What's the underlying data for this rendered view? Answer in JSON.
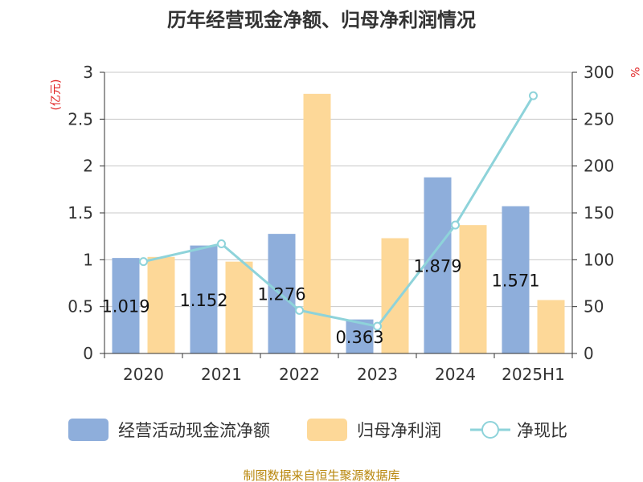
{
  "chart_data": {
    "type": "bar",
    "title": "历年经营现金净额、归母净利润情况",
    "categories": [
      "2020",
      "2021",
      "2022",
      "2023",
      "2024",
      "2025H1"
    ],
    "series": [
      {
        "name": "经营活动现金流净额",
        "type": "bar",
        "axis": "left",
        "color": "#8eaedb",
        "values": [
          1.019,
          1.152,
          1.276,
          0.363,
          1.879,
          1.571
        ],
        "labels": [
          "1.019",
          "1.152",
          "1.276",
          "0.363",
          "1.879",
          "1.571"
        ]
      },
      {
        "name": "归母净利润",
        "type": "bar",
        "axis": "left",
        "color": "#fdd898",
        "values": [
          1.03,
          0.98,
          2.77,
          1.23,
          1.37,
          0.57
        ]
      },
      {
        "name": "净现比",
        "type": "line",
        "axis": "right",
        "color": "#8ed3da",
        "values": [
          98,
          117,
          46,
          29,
          137,
          275
        ]
      }
    ],
    "y_left": {
      "unit": "(亿元)",
      "min": 0,
      "max": 3,
      "ticks": [
        "0",
        "0.5",
        "1",
        "1.5",
        "2",
        "2.5",
        "3"
      ]
    },
    "y_right": {
      "unit": "%",
      "min": 0,
      "max": 300,
      "ticks": [
        "0",
        "50",
        "100",
        "150",
        "200",
        "250",
        "300"
      ]
    },
    "grid": true,
    "legend_position": "bottom"
  },
  "source": "制图数据来自恒生聚源数据库"
}
